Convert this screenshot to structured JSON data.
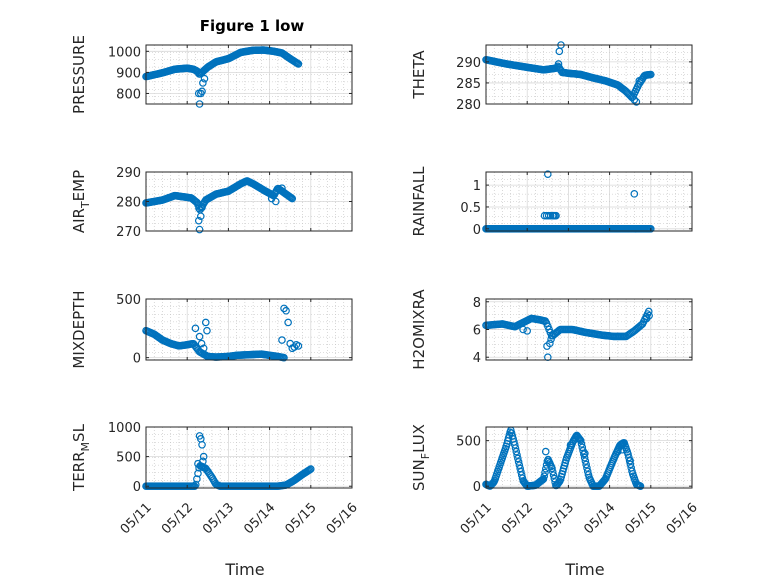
{
  "figure": {
    "title": "Figure 1 low",
    "marker_color": "#0072bd",
    "xlabel_left": "Time",
    "xlabel_right": "Time"
  },
  "chart_data": [
    {
      "type": "scatter",
      "id": "pressure",
      "ylabel": "PRESSURE",
      "title": "Figure 1 low",
      "xlim": [
        0,
        5
      ],
      "ylim": [
        750,
        1030
      ],
      "yticks": [
        800,
        900,
        1000
      ],
      "xticks": [
        0,
        1,
        2,
        3,
        4,
        5
      ],
      "xticklabels": [
        "05/11",
        "05/12",
        "05/13",
        "05/14",
        "05/15",
        "05/16"
      ],
      "show_xticklabels": false,
      "grid": true,
      "x": [],
      "y": [],
      "keys": [
        [
          0,
          880
        ],
        [
          0.4,
          898
        ],
        [
          0.7,
          915
        ],
        [
          1.0,
          920
        ],
        [
          1.15,
          915
        ],
        [
          1.25,
          905
        ],
        [
          1.3,
          890
        ],
        [
          1.5,
          925
        ],
        [
          1.7,
          950
        ],
        [
          2.0,
          965
        ],
        [
          2.3,
          995
        ],
        [
          2.6,
          1005
        ],
        [
          2.85,
          1006
        ],
        [
          3.1,
          1000
        ],
        [
          3.3,
          992
        ],
        [
          3.5,
          965
        ],
        [
          3.7,
          940
        ]
      ],
      "n": 150,
      "extra": [
        [
          1.28,
          800
        ],
        [
          1.33,
          800
        ],
        [
          1.3,
          750
        ],
        [
          1.38,
          850
        ],
        [
          1.42,
          870
        ],
        [
          1.36,
          810
        ]
      ]
    },
    {
      "type": "scatter",
      "id": "theta",
      "ylabel": "THETA",
      "xlim": [
        0,
        5
      ],
      "ylim": [
        280,
        294
      ],
      "yticks": [
        280,
        285,
        290
      ],
      "xticks": [
        0,
        1,
        2,
        3,
        4,
        5
      ],
      "xticklabels": [
        "05/11",
        "05/12",
        "05/13",
        "05/14",
        "05/15",
        "05/16"
      ],
      "show_xticklabels": false,
      "grid": true,
      "x": [],
      "y": [],
      "keys": [
        [
          0,
          290.5
        ],
        [
          0.5,
          289.5
        ],
        [
          1.0,
          288.7
        ],
        [
          1.4,
          288.1
        ],
        [
          1.7,
          288.5
        ],
        [
          1.75,
          289.0
        ],
        [
          1.85,
          287.5
        ],
        [
          2.0,
          287.3
        ],
        [
          2.3,
          287.0
        ],
        [
          2.6,
          286.2
        ],
        [
          2.9,
          285.5
        ],
        [
          3.2,
          284.5
        ],
        [
          3.4,
          283.0
        ],
        [
          3.55,
          281.5
        ],
        [
          3.7,
          284.5
        ],
        [
          3.85,
          286.8
        ],
        [
          4.0,
          287.0
        ]
      ],
      "n": 150,
      "extra": [
        [
          1.78,
          292.5
        ],
        [
          1.82,
          294.0
        ],
        [
          1.76,
          289.5
        ],
        [
          3.6,
          281.0
        ],
        [
          3.65,
          280.5
        ],
        [
          3.72,
          285.5
        ]
      ]
    },
    {
      "type": "scatter",
      "id": "airtemp",
      "ylabel_parts": [
        "AIR",
        "T",
        "EMP"
      ],
      "xlim": [
        0,
        5
      ],
      "ylim": [
        270,
        290
      ],
      "yticks": [
        270,
        280,
        290
      ],
      "xticks": [
        0,
        1,
        2,
        3,
        4,
        5
      ],
      "xticklabels": [
        "05/11",
        "05/12",
        "05/13",
        "05/14",
        "05/15",
        "05/16"
      ],
      "show_xticklabels": false,
      "grid": true,
      "x": [],
      "y": [],
      "keys": [
        [
          0,
          279.5
        ],
        [
          0.4,
          280.5
        ],
        [
          0.7,
          282.0
        ],
        [
          1.1,
          281.2
        ],
        [
          1.25,
          279.5
        ],
        [
          1.3,
          277.0
        ],
        [
          1.45,
          280.5
        ],
        [
          1.7,
          282.5
        ],
        [
          2.0,
          283.5
        ],
        [
          2.3,
          286.0
        ],
        [
          2.45,
          287.0
        ],
        [
          2.6,
          286.0
        ],
        [
          2.9,
          283.5
        ],
        [
          3.1,
          282.0
        ],
        [
          3.2,
          284.5
        ],
        [
          3.35,
          283.0
        ],
        [
          3.55,
          281.0
        ]
      ],
      "n": 150,
      "extra": [
        [
          1.28,
          273.5
        ],
        [
          1.3,
          270.5
        ],
        [
          1.33,
          275.0
        ],
        [
          1.36,
          278.0
        ],
        [
          3.05,
          281.0
        ],
        [
          3.15,
          280.0
        ],
        [
          3.3,
          284.5
        ]
      ]
    },
    {
      "type": "scatter",
      "id": "rainfall",
      "ylabel": "RAINFALL",
      "xlim": [
        0,
        5
      ],
      "ylim": [
        -0.05,
        1.3
      ],
      "yticks": [
        0,
        0.5,
        1
      ],
      "xticks": [
        0,
        1,
        2,
        3,
        4,
        5
      ],
      "xticklabels": [
        "05/11",
        "05/12",
        "05/13",
        "05/14",
        "05/15",
        "05/16"
      ],
      "show_xticklabels": false,
      "grid": true,
      "x": [],
      "y": [],
      "keys": [
        [
          0,
          0
        ],
        [
          4.0,
          0
        ]
      ],
      "n": 150,
      "extra": [
        [
          1.42,
          0.3
        ],
        [
          1.47,
          0.3
        ],
        [
          1.52,
          0.3
        ],
        [
          1.5,
          1.25
        ],
        [
          1.57,
          0.3
        ],
        [
          1.62,
          0.3
        ],
        [
          1.64,
          0.3
        ],
        [
          1.67,
          0.3
        ],
        [
          1.7,
          0.3
        ],
        [
          3.6,
          0.8
        ]
      ]
    },
    {
      "type": "scatter",
      "id": "mixdepth",
      "ylabel": "MIXDEPTH",
      "xlim": [
        0,
        5
      ],
      "ylim": [
        -20,
        500
      ],
      "yticks": [
        0,
        500
      ],
      "xticks": [
        0,
        1,
        2,
        3,
        4,
        5
      ],
      "xticklabels": [
        "05/11",
        "05/12",
        "05/13",
        "05/14",
        "05/15",
        "05/16"
      ],
      "show_xticklabels": false,
      "grid": true,
      "x": [],
      "y": [],
      "keys": [
        [
          0,
          230
        ],
        [
          0.2,
          200
        ],
        [
          0.4,
          150
        ],
        [
          0.6,
          120
        ],
        [
          0.8,
          100
        ],
        [
          1.0,
          110
        ],
        [
          1.15,
          120
        ],
        [
          1.3,
          50
        ],
        [
          1.5,
          10
        ],
        [
          1.7,
          5
        ],
        [
          2.0,
          10
        ],
        [
          2.2,
          20
        ],
        [
          2.5,
          25
        ],
        [
          2.8,
          30
        ],
        [
          3.0,
          20
        ],
        [
          3.2,
          10
        ],
        [
          3.35,
          0
        ]
      ],
      "n": 120,
      "extra": [
        [
          1.2,
          250
        ],
        [
          1.3,
          180
        ],
        [
          1.35,
          120
        ],
        [
          1.4,
          80
        ],
        [
          1.45,
          300
        ],
        [
          1.48,
          230
        ],
        [
          3.35,
          420
        ],
        [
          3.4,
          400
        ],
        [
          3.45,
          300
        ],
        [
          3.3,
          150
        ],
        [
          3.5,
          120
        ],
        [
          3.55,
          80
        ],
        [
          3.6,
          90
        ],
        [
          3.65,
          110
        ],
        [
          3.7,
          100
        ]
      ]
    },
    {
      "type": "scatter",
      "id": "h2omixra",
      "ylabel": "H2OMIXRA",
      "xlim": [
        0,
        5
      ],
      "ylim": [
        3.8,
        8.2
      ],
      "yticks": [
        4,
        6,
        8
      ],
      "xticks": [
        0,
        1,
        2,
        3,
        4,
        5
      ],
      "xticklabels": [
        "05/11",
        "05/12",
        "05/13",
        "05/14",
        "05/15",
        "05/16"
      ],
      "show_xticklabels": false,
      "grid": true,
      "x": [],
      "y": [],
      "keys": [
        [
          0,
          6.3
        ],
        [
          0.4,
          6.4
        ],
        [
          0.7,
          6.2
        ],
        [
          0.9,
          6.5
        ],
        [
          1.1,
          6.8
        ],
        [
          1.3,
          6.7
        ],
        [
          1.45,
          6.6
        ],
        [
          1.6,
          5.5
        ],
        [
          1.8,
          6.0
        ],
        [
          2.1,
          6.0
        ],
        [
          2.4,
          5.8
        ],
        [
          2.8,
          5.6
        ],
        [
          3.1,
          5.5
        ],
        [
          3.4,
          5.5
        ],
        [
          3.6,
          5.9
        ],
        [
          3.8,
          6.4
        ],
        [
          3.95,
          7.3
        ]
      ],
      "n": 130,
      "extra": [
        [
          1.48,
          4.8
        ],
        [
          1.5,
          4.0
        ],
        [
          1.55,
          5.0
        ],
        [
          1.58,
          5.3
        ],
        [
          0.9,
          6.0
        ],
        [
          1.0,
          5.9
        ],
        [
          3.9,
          6.8
        ],
        [
          3.96,
          7.0
        ]
      ]
    },
    {
      "type": "scatter",
      "id": "terrmsl",
      "ylabel_parts": [
        "TERR",
        "M",
        "SL"
      ],
      "xlim": [
        0,
        5
      ],
      "ylim": [
        -30,
        1000
      ],
      "yticks": [
        0,
        500,
        1000
      ],
      "xticks": [
        0,
        1,
        2,
        3,
        4,
        5
      ],
      "xticklabels": [
        "05/11",
        "05/12",
        "05/13",
        "05/14",
        "05/15",
        "05/16"
      ],
      "show_xticklabels": true,
      "xlabel": "Time",
      "grid": true,
      "x": [],
      "y": [],
      "keys": [
        [
          0,
          0
        ],
        [
          1.2,
          0
        ],
        [
          1.3,
          350
        ],
        [
          1.45,
          300
        ],
        [
          1.6,
          150
        ],
        [
          1.7,
          30
        ],
        [
          1.8,
          0
        ],
        [
          3.2,
          0
        ],
        [
          3.4,
          20
        ],
        [
          3.6,
          100
        ],
        [
          3.8,
          200
        ],
        [
          4.0,
          290
        ]
      ],
      "n": 150,
      "extra": [
        [
          1.3,
          850
        ],
        [
          1.33,
          800
        ],
        [
          1.36,
          700
        ],
        [
          1.4,
          500
        ],
        [
          1.38,
          420
        ],
        [
          1.26,
          380
        ]
      ]
    },
    {
      "type": "scatter",
      "id": "sunflux",
      "ylabel_parts": [
        "SUN",
        "F",
        "LUX"
      ],
      "xlim": [
        0,
        5
      ],
      "ylim": [
        -20,
        650
      ],
      "yticks": [
        0,
        500
      ],
      "xticks": [
        0,
        1,
        2,
        3,
        4,
        5
      ],
      "xticklabels": [
        "05/11",
        "05/12",
        "05/13",
        "05/14",
        "05/15",
        "05/16"
      ],
      "show_xticklabels": true,
      "xlabel": "Time",
      "grid": true,
      "x": [],
      "y": [],
      "keys": [
        [
          0,
          20
        ],
        [
          0.1,
          0
        ],
        [
          0.2,
          50
        ],
        [
          0.35,
          250
        ],
        [
          0.5,
          450
        ],
        [
          0.6,
          620
        ],
        [
          0.7,
          450
        ],
        [
          0.8,
          250
        ],
        [
          0.9,
          60
        ],
        [
          1.0,
          0
        ],
        [
          1.2,
          10
        ],
        [
          1.4,
          80
        ],
        [
          1.5,
          300
        ],
        [
          1.6,
          200
        ],
        [
          1.7,
          0
        ],
        [
          1.8,
          60
        ],
        [
          1.95,
          300
        ],
        [
          2.1,
          480
        ],
        [
          2.2,
          560
        ],
        [
          2.3,
          500
        ],
        [
          2.4,
          300
        ],
        [
          2.5,
          100
        ],
        [
          2.6,
          0
        ],
        [
          2.75,
          0
        ],
        [
          2.9,
          80
        ],
        [
          3.1,
          300
        ],
        [
          3.25,
          450
        ],
        [
          3.35,
          480
        ],
        [
          3.45,
          350
        ],
        [
          3.55,
          150
        ],
        [
          3.65,
          20
        ],
        [
          3.75,
          0
        ]
      ],
      "n": 200,
      "extra": [
        [
          1.45,
          380
        ],
        [
          2.05,
          450
        ],
        [
          2.4,
          360
        ],
        [
          3.2,
          380
        ],
        [
          3.3,
          400
        ],
        [
          3.5,
          280
        ]
      ]
    }
  ]
}
